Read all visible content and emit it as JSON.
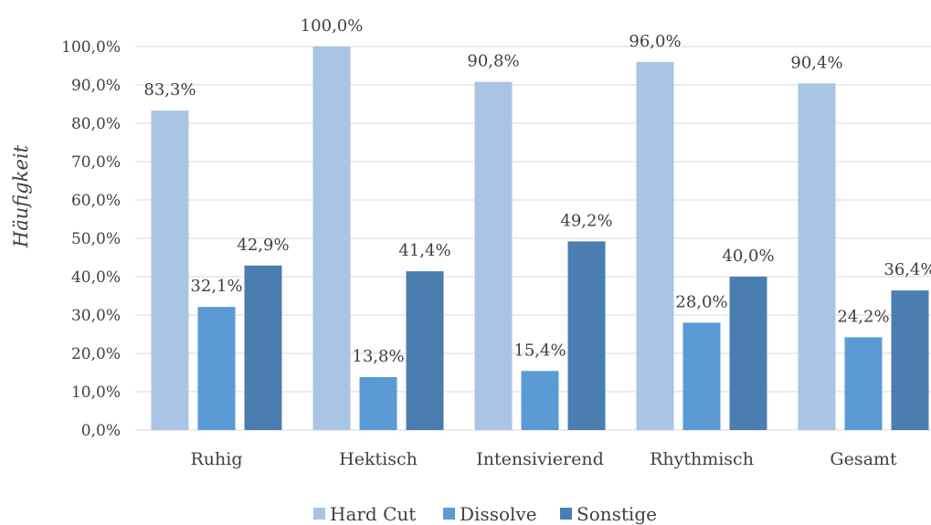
{
  "chart_data": {
    "type": "bar",
    "ylabel": "Häufigkeit",
    "ylim": [
      0,
      100
    ],
    "yticks": [
      "0,0%",
      "10,0%",
      "20,0%",
      "30,0%",
      "40,0%",
      "50,0%",
      "60,0%",
      "70,0%",
      "80,0%",
      "90,0%",
      "100,0%"
    ],
    "categories": [
      "Ruhig",
      "Hektisch",
      "Intensivierend",
      "Rhythmisch",
      "Gesamt"
    ],
    "series": [
      {
        "name": "Hard Cut",
        "color": "#a9c4e4",
        "values": [
          83.3,
          100.0,
          90.8,
          96.0,
          90.4
        ],
        "labels": [
          "83,3%",
          "100,0%",
          "90,8%",
          "96,0%",
          "90,4%"
        ]
      },
      {
        "name": "Dissolve",
        "color": "#5b9bd5",
        "values": [
          32.1,
          13.8,
          15.4,
          28.0,
          24.2
        ],
        "labels": [
          "32,1%",
          "13,8%",
          "15,4%",
          "28,0%",
          "24,2%"
        ]
      },
      {
        "name": "Sonstige",
        "color": "#4a7eb0",
        "values": [
          42.9,
          41.4,
          49.2,
          40.0,
          36.4
        ],
        "labels": [
          "42,9%",
          "41,4%",
          "49,2%",
          "40,0%",
          "36,4%"
        ]
      }
    ],
    "grid": true,
    "legend_position": "bottom"
  }
}
